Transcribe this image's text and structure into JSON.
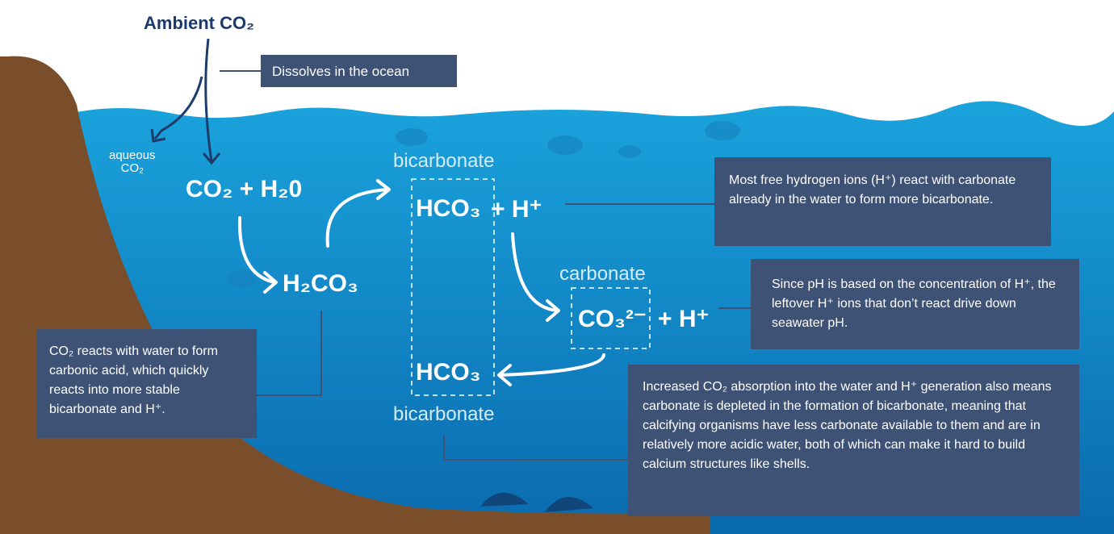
{
  "title": "Ambient CO₂",
  "dissolve_note": "Dissolves in the ocean",
  "aqueous": {
    "line1": "aqueous",
    "line2": "CO₂"
  },
  "reactions": {
    "reactants": "CO₂ + H₂0",
    "carbonic_acid": "H₂CO₃",
    "bicarbonate_top": {
      "label": "bicarbonate",
      "formula": "HCO₃",
      "ion": "+ H⁺"
    },
    "carbonate": {
      "label": "carbonate",
      "formula": "CO₃²⁻",
      "ion": "+ H⁺"
    },
    "bicarbonate_bottom": {
      "label": "bicarbonate",
      "formula": "HCO₃"
    }
  },
  "notes": [
    "Most free hydrogen ions (H⁺) react with carbonate already in the water to form more bicarbonate.",
    "Since pH is based on the concentration of H⁺, the leftover H⁺ ions that don’t react drive down seawater pH.",
    "CO₂ reacts with water to form carbonic acid, which quickly reacts into more stable bicarbonate and H⁺.",
    "Increased CO₂ absorption into the water and H⁺ generation also means carbonate is depleted in the formation of bicarbonate, meaning that calcifying organisms have less carbonate available to them and are in relatively more acidic water, both of which can make it hard to build calcium structures like shells."
  ]
}
